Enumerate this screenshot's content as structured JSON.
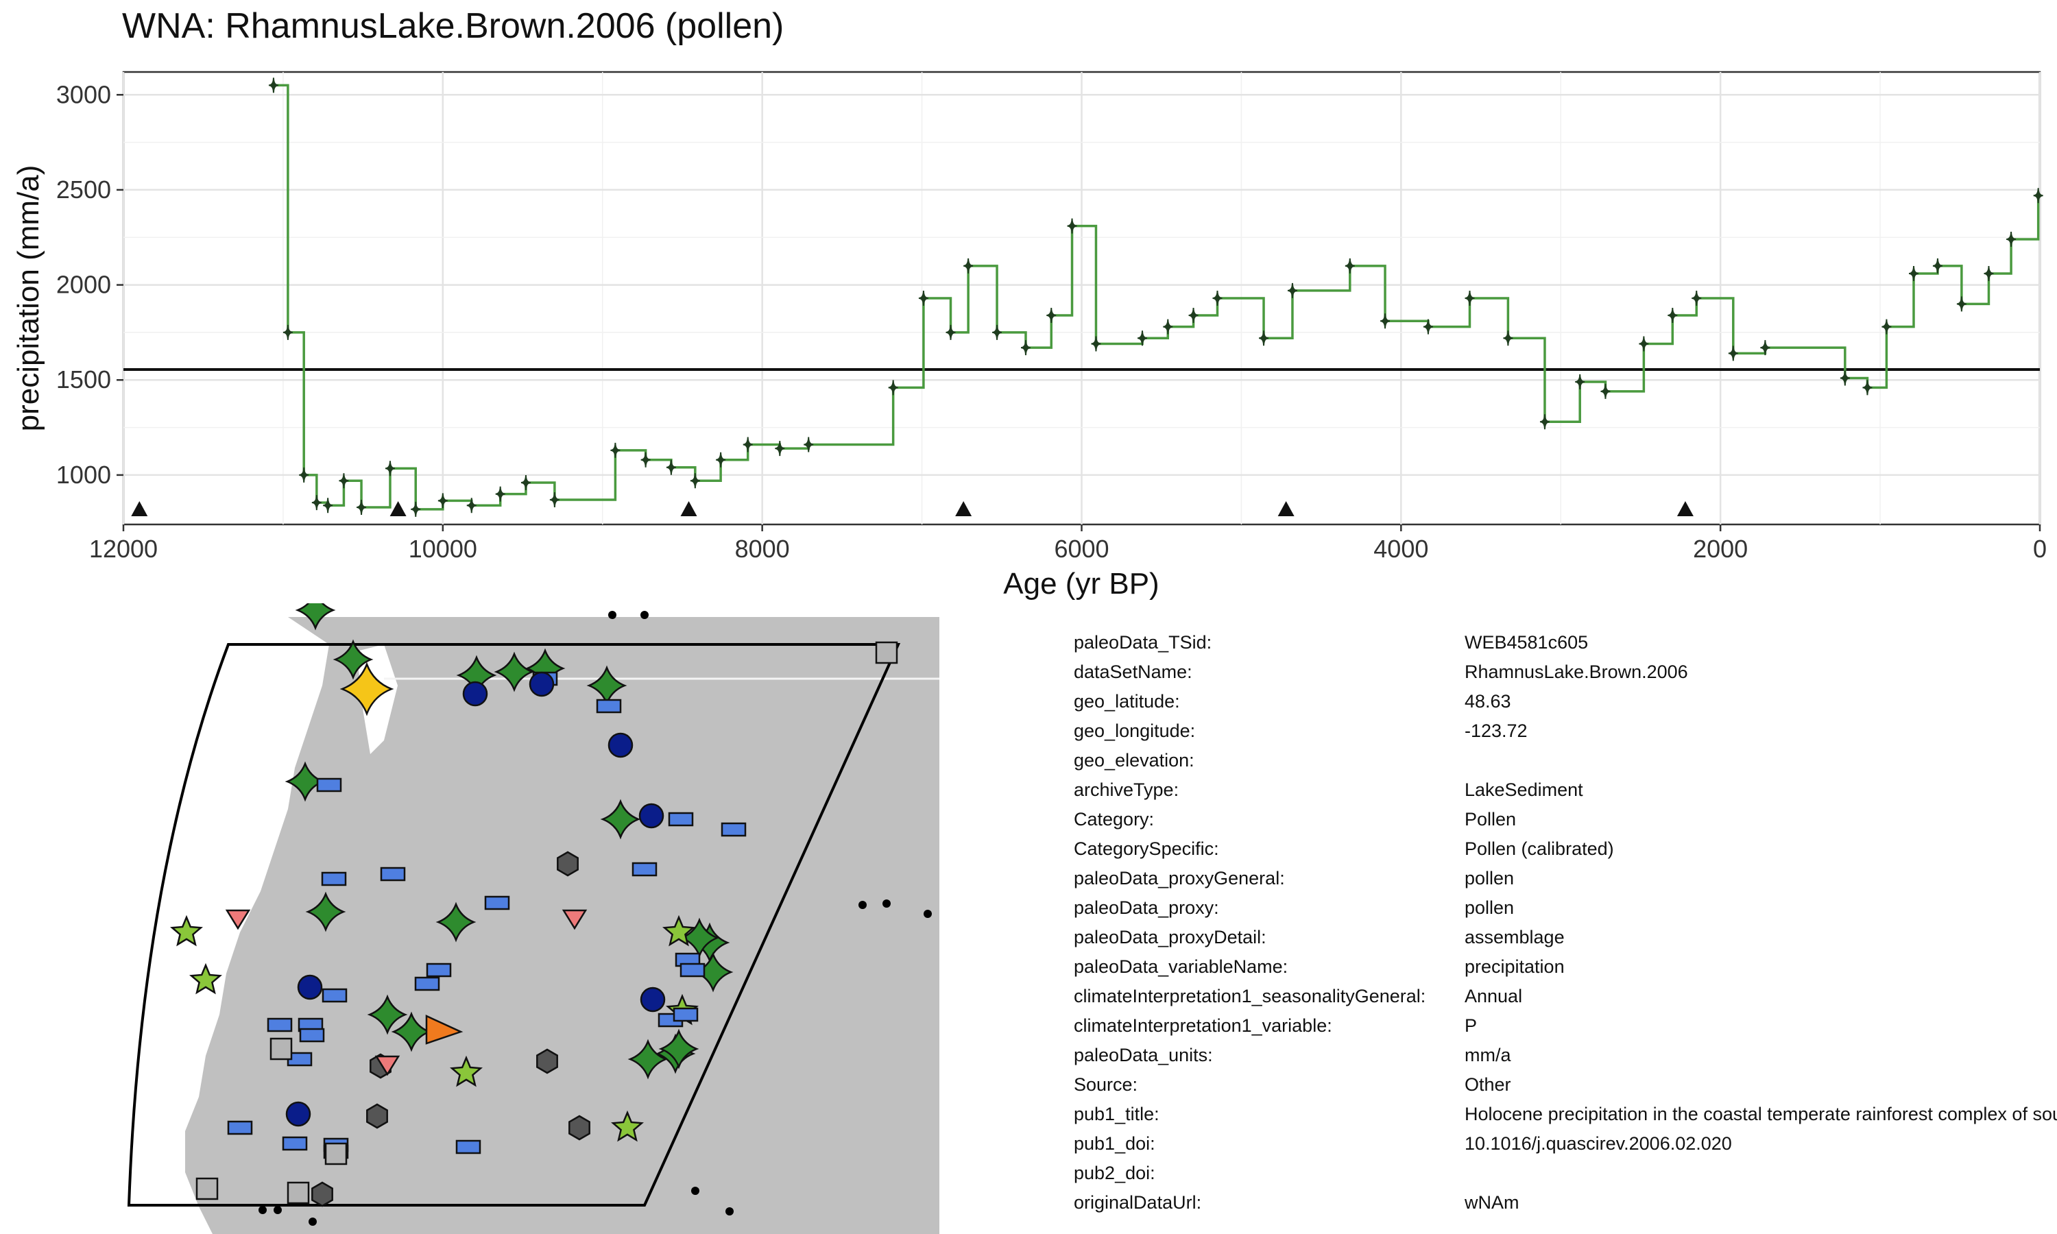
{
  "title": "WNA: RhamnusLake.Brown.2006 (pollen)",
  "chart_data": {
    "type": "line",
    "step": true,
    "title": "WNA: RhamnusLake.Brown.2006 (pollen)",
    "xlabel": "Age (yr BP)",
    "ylabel": "precipitation (mm/a)",
    "xlim": [
      12000,
      0
    ],
    "ylim": [
      740,
      3120
    ],
    "x_reversed": true,
    "x_ticks": [
      "12000",
      "10000",
      "8000",
      "6000",
      "4000",
      "2000",
      "0"
    ],
    "y_ticks": [
      "1000",
      "1500",
      "2000",
      "2500",
      "3000"
    ],
    "grid": true,
    "series": [
      {
        "color": "#4a9a3f",
        "marker_color": "#1f3d1f",
        "x": [
          11060,
          10970,
          10870,
          10790,
          10720,
          10620,
          10510,
          10330,
          10170,
          10000,
          9820,
          9640,
          9480,
          9300,
          8920,
          8730,
          8570,
          8420,
          8260,
          8090,
          7890,
          7710,
          7180,
          6990,
          6820,
          6710,
          6530,
          6350,
          6190,
          6060,
          5910,
          5620,
          5460,
          5300,
          5150,
          4860,
          4680,
          4320,
          4100,
          3830,
          3570,
          3330,
          3100,
          2880,
          2720,
          2480,
          2300,
          2150,
          1920,
          1720,
          1220,
          1080,
          960,
          790,
          640,
          490,
          320,
          180,
          10
        ],
        "y": [
          3050,
          1750,
          1000,
          855,
          840,
          970,
          830,
          1035,
          820,
          865,
          840,
          900,
          960,
          870,
          1130,
          1080,
          1040,
          970,
          1080,
          1160,
          1140,
          1160,
          1460,
          1930,
          1750,
          2100,
          1750,
          1670,
          1840,
          2310,
          1690,
          1720,
          1780,
          1840,
          1930,
          1720,
          1970,
          2100,
          1810,
          1780,
          1930,
          1720,
          1280,
          1490,
          1440,
          1690,
          1840,
          1930,
          1640,
          1670,
          1510,
          1460,
          1780,
          2060,
          2100,
          1900,
          2060,
          2240,
          2470
        ]
      }
    ],
    "reference_line": 1555,
    "age_control_points": [
      11900,
      10280,
      8460,
      6740,
      4720,
      2220
    ],
    "marker_color": "#111111"
  },
  "map": {
    "land_color": "#c0c0c0",
    "highlight_color": "#f5c518",
    "symbol_colors": {
      "dark-green-star": "#2e8b2e",
      "light-green-star": "#8ac63a",
      "blue-rectangle": "#4f7fe0",
      "navy-circle": "#0a1d8a",
      "gray-hexagon": "#555555",
      "light-gray-square": "#b5b5b5",
      "pink-triangle": "#ee7a7a",
      "orange-triangle": "#f07a1e"
    }
  },
  "metadata": [
    {
      "key": "paleoData_TSid:",
      "value": "WEB4581c605"
    },
    {
      "key": "dataSetName:",
      "value": "RhamnusLake.Brown.2006"
    },
    {
      "key": "geo_latitude:",
      "value": "48.63"
    },
    {
      "key": "geo_longitude:",
      "value": "-123.72"
    },
    {
      "key": "geo_elevation:",
      "value": ""
    },
    {
      "key": "archiveType:",
      "value": "LakeSediment"
    },
    {
      "key": "Category:",
      "value": "Pollen"
    },
    {
      "key": "CategorySpecific:",
      "value": "Pollen (calibrated)"
    },
    {
      "key": "paleoData_proxyGeneral:",
      "value": "pollen"
    },
    {
      "key": "paleoData_proxy:",
      "value": "pollen"
    },
    {
      "key": "paleoData_proxyDetail:",
      "value": "assemblage"
    },
    {
      "key": "paleoData_variableName:",
      "value": "precipitation"
    },
    {
      "key": "climateInterpretation1_seasonalityGeneral:",
      "value": "Annual"
    },
    {
      "key": "climateInterpretation1_variable:",
      "value": "P"
    },
    {
      "key": "paleoData_units:",
      "value": "mm/a"
    },
    {
      "key": "Source:",
      "value": "Other"
    },
    {
      "key": "pub1_title:",
      "value": "Holocene precipitation in the coastal temperate rainforest complex of southern British Columbia, Canada"
    },
    {
      "key": "pub1_doi:",
      "value": "10.1016/j.quascirev.2006.02.020"
    },
    {
      "key": "pub2_doi:",
      "value": ""
    },
    {
      "key": "originalDataUrl:",
      "value": "wNAm"
    }
  ]
}
